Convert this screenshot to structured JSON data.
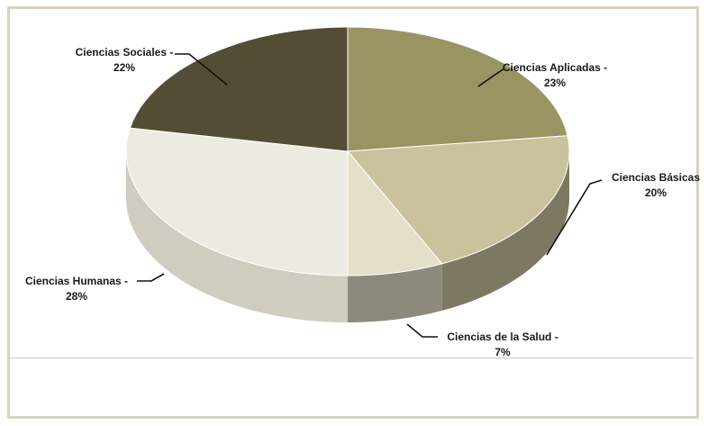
{
  "chart_data": {
    "type": "pie",
    "title": "",
    "labels": [
      "Ciencias Aplicadas",
      "Ciencias Básicas",
      "Ciencias de la Salud",
      "Ciencias Humanas",
      "Ciencias Sociales"
    ],
    "values": [
      23,
      20,
      7,
      28,
      22
    ],
    "unit": "%",
    "colors": [
      "#9a9462",
      "#c9c29c",
      "#e3dfc9",
      "#ecebe2",
      "#544d35"
    ],
    "label_lines": [
      [
        "Ciencias Aplicadas -",
        "23%"
      ],
      [
        "Ciencias Básicas",
        "20%"
      ],
      [
        "Ciencias de la Salud -",
        "7%"
      ],
      [
        "Ciencias Humanas -",
        "28%"
      ],
      [
        "Ciencias Sociales -",
        "22%"
      ]
    ]
  }
}
